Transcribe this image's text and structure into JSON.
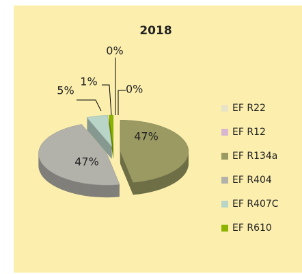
{
  "chart_data": {
    "type": "pie",
    "title": "2018",
    "categories": [
      "EF R22",
      "EF R12",
      "EF R134a",
      "EF R404",
      "EF R407C",
      "EF R610"
    ],
    "values": [
      0,
      0,
      47,
      47,
      5,
      1
    ],
    "value_labels": [
      "0%",
      "0%",
      "47%",
      "47%",
      "5%",
      "1%"
    ],
    "colors": [
      "#e8e3c6",
      "#d9b6cf",
      "#9a9a62",
      "#b2b1aa",
      "#b9d5c8",
      "#8bb300"
    ],
    "legend": "right"
  }
}
